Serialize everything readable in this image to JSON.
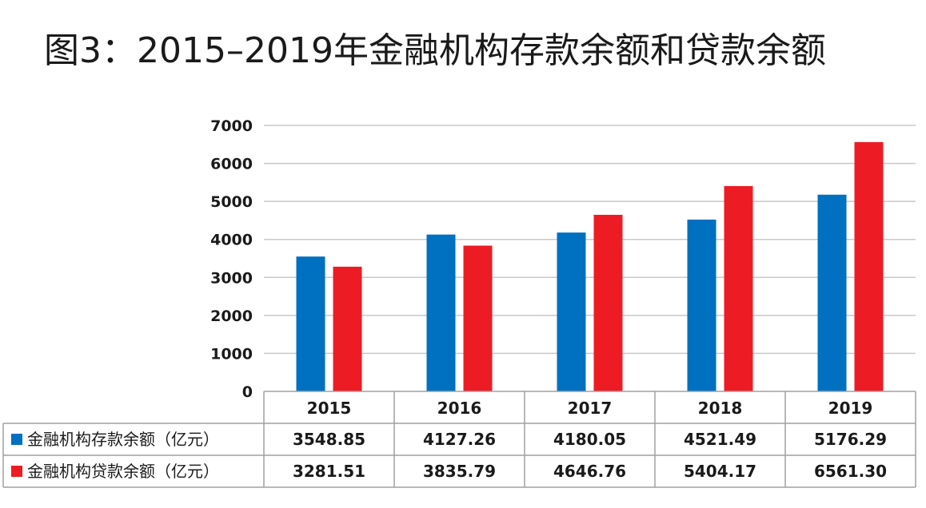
{
  "chart_data": {
    "type": "bar",
    "title": "图3：2015–2019年金融机构存款余额和贷款余额",
    "categories": [
      "2015",
      "2016",
      "2017",
      "2018",
      "2019"
    ],
    "series": [
      {
        "name": "金融机构存款余额（亿元）",
        "values": [
          3548.85,
          4127.26,
          4180.05,
          4521.49,
          5176.29
        ],
        "labels": [
          "3548.85",
          "4127.26",
          "4180.05",
          "4521.49",
          "5176.29"
        ]
      },
      {
        "name": "金融机构贷款余额（亿元）",
        "values": [
          3281.51,
          3835.79,
          4646.76,
          5404.17,
          6561.3
        ],
        "labels": [
          "3281.51",
          "3835.79",
          "4646.76",
          "5404.17",
          "6561.30"
        ]
      }
    ],
    "ylim": [
      0,
      7000
    ],
    "yticks": [
      "0",
      "1000",
      "2000",
      "3000",
      "4000",
      "5000",
      "6000",
      "7000"
    ],
    "grid": true,
    "legend": "data-table",
    "colors": [
      "#0070c0",
      "#ed1c24"
    ]
  }
}
